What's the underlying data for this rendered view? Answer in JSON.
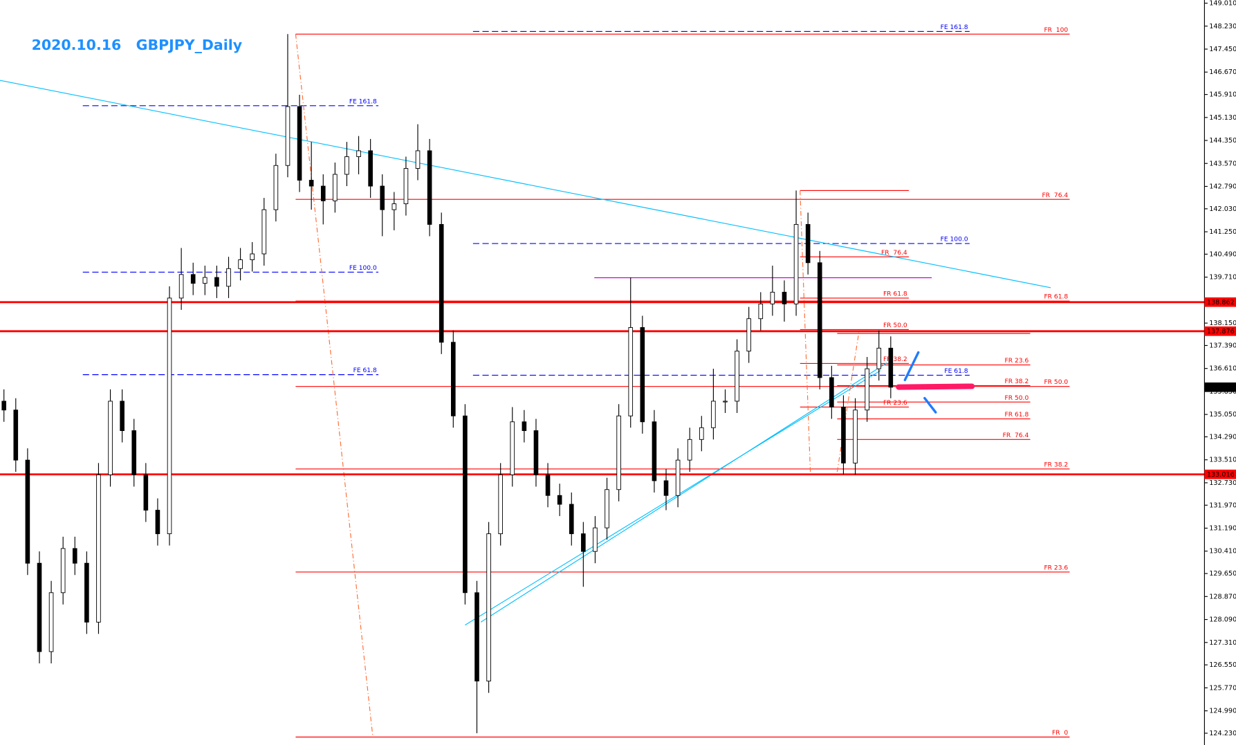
{
  "chart_data": {
    "type": "candlestick",
    "title": "2020.10.16   GBPJPY_Daily",
    "open": [
      135.5,
      135.2,
      133.5,
      130,
      127,
      129,
      130.5,
      130,
      128,
      133,
      135.5,
      134.5,
      133,
      131.8,
      131,
      139,
      139.8,
      139.5,
      139.7,
      139.4,
      140,
      140.3,
      140.5,
      142,
      143.5,
      145.5,
      143,
      142.8,
      142.3,
      143.2,
      143.8,
      144,
      142.8,
      142,
      142.2,
      143.4,
      144,
      141.5,
      137.5,
      135,
      129,
      126,
      131,
      133,
      134.8,
      134.5,
      133,
      132.3,
      132,
      131,
      130.4,
      131.2,
      132.5,
      135,
      138,
      134.8,
      132.8,
      132.3,
      133.5,
      134.2,
      134.6,
      135.5,
      135.5,
      137.2,
      138.3,
      138.8,
      139.2,
      138.8,
      141.5,
      140.2,
      136.3,
      135.3,
      133.4,
      135.2,
      136.6,
      137.3
    ],
    "high": [
      135.9,
      135.6,
      133.9,
      130.4,
      129.4,
      130.9,
      130.9,
      130.4,
      133.4,
      135.9,
      135.9,
      134.9,
      133.4,
      132.2,
      139.4,
      140.7,
      140.2,
      140.1,
      140.1,
      140.4,
      140.7,
      140.9,
      142.4,
      143.9,
      147.96,
      145.9,
      144.3,
      143.2,
      143.6,
      144.3,
      144.5,
      144.4,
      143.2,
      142.6,
      143.8,
      144.9,
      144.4,
      141.9,
      137.9,
      135.4,
      129.4,
      131.4,
      133.4,
      135.3,
      135.2,
      134.9,
      133.4,
      132.7,
      132.4,
      131.4,
      131.6,
      132.9,
      135.4,
      139.7,
      138.4,
      135.2,
      133.2,
      133.9,
      134.6,
      135,
      136.6,
      135.9,
      137.6,
      138.7,
      139.2,
      140.1,
      139.6,
      142.65,
      141.9,
      140.6,
      136.7,
      135.7,
      135.6,
      137,
      137.9,
      137.7
    ],
    "low": [
      134.8,
      133.1,
      129.6,
      126.6,
      126.6,
      128.6,
      129.6,
      127.6,
      127.6,
      132.6,
      134.1,
      132.6,
      131.4,
      130.6,
      130.6,
      138.6,
      139.1,
      139.1,
      139,
      139,
      139.6,
      139.9,
      140.1,
      141.6,
      143.1,
      142.6,
      142,
      141.5,
      141.9,
      142.8,
      143.2,
      142.4,
      141.1,
      141.3,
      141.8,
      143,
      141.1,
      137.1,
      134.6,
      128.6,
      124.23,
      125.6,
      130.6,
      132.6,
      134.1,
      132.6,
      131.9,
      131.6,
      130.6,
      129.2,
      130,
      130.8,
      132.1,
      134.6,
      134.4,
      132.4,
      131.8,
      131.9,
      133.1,
      133.8,
      134.2,
      135.1,
      135.1,
      136.8,
      137.9,
      138.4,
      138.2,
      138.4,
      139.8,
      135.9,
      134.9,
      133.016,
      133,
      134.8,
      136.2,
      135.6
    ],
    "close": [
      135.2,
      133.5,
      130,
      127,
      129,
      130.5,
      130,
      128,
      133,
      135.5,
      134.5,
      133,
      131.8,
      131,
      139,
      139.8,
      139.5,
      139.7,
      139.4,
      140,
      140.3,
      140.5,
      142,
      143.5,
      145.5,
      143,
      142.8,
      142.3,
      143.2,
      143.8,
      144,
      142.8,
      142,
      142.2,
      143.4,
      144,
      141.5,
      137.5,
      135,
      129,
      126,
      131,
      133,
      134.8,
      134.5,
      133,
      132.3,
      132,
      131,
      130.4,
      131.2,
      132.5,
      135,
      138,
      134.8,
      132.8,
      132.3,
      133.5,
      134.2,
      134.6,
      135.5,
      135.5,
      137.2,
      138.3,
      138.8,
      139.2,
      138.8,
      141.5,
      140.2,
      136.3,
      135.3,
      133.4,
      135.2,
      136.6,
      137.3,
      135.974
    ],
    "up_color": "#ffffff",
    "down_color": "#000000",
    "wick_color": "#000000",
    "ylim": [
      123.83,
      149.117
    ],
    "yticks": [
      {
        "value": 149.01,
        "label": "149.010"
      },
      {
        "value": 148.23,
        "label": "148.230"
      },
      {
        "value": 147.45,
        "label": "147.450"
      },
      {
        "value": 146.67,
        "label": "146.670"
      },
      {
        "value": 145.91,
        "label": "145.910"
      },
      {
        "value": 145.13,
        "label": "145.130"
      },
      {
        "value": 144.35,
        "label": "144.350"
      },
      {
        "value": 143.57,
        "label": "143.570"
      },
      {
        "value": 142.79,
        "label": "142.790"
      },
      {
        "value": 142.03,
        "label": "142.030"
      },
      {
        "value": 141.25,
        "label": "141.250"
      },
      {
        "value": 140.49,
        "label": "140.490"
      },
      {
        "value": 139.71,
        "label": "139.710"
      },
      {
        "value": 138.93,
        "label": "138.930"
      },
      {
        "value": 138.15,
        "label": "138.150"
      },
      {
        "value": 137.39,
        "label": "137.390"
      },
      {
        "value": 136.61,
        "label": "136.610"
      },
      {
        "value": 135.83,
        "label": "135.830"
      },
      {
        "value": 135.05,
        "label": "135.050"
      },
      {
        "value": 134.29,
        "label": "134.290"
      },
      {
        "value": 133.51,
        "label": "133.510"
      },
      {
        "value": 132.73,
        "label": "132.730"
      },
      {
        "value": 131.97,
        "label": "131.970"
      },
      {
        "value": 131.19,
        "label": "131.190"
      },
      {
        "value": 130.41,
        "label": "130.410"
      },
      {
        "value": 129.65,
        "label": "129.650"
      },
      {
        "value": 128.87,
        "label": "128.870"
      },
      {
        "value": 128.09,
        "label": "128.090"
      },
      {
        "value": 127.31,
        "label": "127.310"
      },
      {
        "value": 126.55,
        "label": "126.550"
      },
      {
        "value": 125.77,
        "label": "125.770"
      },
      {
        "value": 124.99,
        "label": "124.990"
      },
      {
        "value": 124.23,
        "label": "124.230"
      }
    ],
    "price_lines": [
      {
        "value": 138.862,
        "color": "#ff0000"
      },
      {
        "value": 137.876,
        "color": "#ff0000"
      },
      {
        "value": 133.016,
        "color": "#ff0000"
      },
      {
        "value": 135.974,
        "color": "#000000"
      }
    ],
    "levels": [
      {
        "label": "FR  100",
        "value": 147.96,
        "from": 24.67,
        "to": 90.13,
        "color": "#ff0000",
        "style": "solid"
      },
      {
        "label": "FR  76.4",
        "value": 142.35,
        "from": 24.67,
        "to": 90.13,
        "color": "#ff0000",
        "style": "solid"
      },
      {
        "label": "FR 61.8",
        "value": 138.9,
        "from": 24.67,
        "to": 90.13,
        "color": "#ff0000",
        "style": "solid"
      },
      {
        "label": "FR 50.0",
        "value": 136.0,
        "from": 24.67,
        "to": 90.13,
        "color": "#ff0000",
        "style": "solid"
      },
      {
        "label": "FR 38.2",
        "value": 133.2,
        "from": 24.67,
        "to": 90.13,
        "color": "#ff0000",
        "style": "solid"
      },
      {
        "label": "FR 23.6",
        "value": 129.7,
        "from": 24.67,
        "to": 90.13,
        "color": "#ff0000",
        "style": "solid"
      },
      {
        "label": "FR  0",
        "value": 124.1,
        "from": 24.67,
        "to": 90.13,
        "color": "#ff0000",
        "style": "solid"
      },
      {
        "value": 142.65,
        "from": 67.33,
        "to": 76.53,
        "color": "#ff0000",
        "style": "solid"
      },
      {
        "label": "FR  76.4",
        "value": 140.4,
        "from": 67.33,
        "to": 76.53,
        "color": "#ff0000",
        "style": "solid"
      },
      {
        "label": "FR 61.8",
        "value": 139.0,
        "from": 67.33,
        "to": 76.53,
        "color": "#ff0000",
        "style": "solid"
      },
      {
        "label": "FR 50.0",
        "value": 137.93,
        "from": 67.33,
        "to": 76.53,
        "color": "#ff0000",
        "style": "solid"
      },
      {
        "label": "FR 38.2",
        "value": 136.78,
        "from": 67.33,
        "to": 76.53,
        "color": "#ff0000",
        "style": "solid"
      },
      {
        "label": "FR 23.6",
        "value": 135.3,
        "from": 67.33,
        "to": 76.53,
        "color": "#ff0000",
        "style": "solid"
      },
      {
        "value": 137.8,
        "from": 70.47,
        "to": 86.8,
        "color": "#ff0000",
        "style": "solid"
      },
      {
        "label": "FR 23.6",
        "value": 136.73,
        "from": 70.47,
        "to": 86.8,
        "color": "#ff0000",
        "style": "solid"
      },
      {
        "label": "FR 38.2",
        "value": 136.03,
        "from": 70.47,
        "to": 86.8,
        "color": "#ff0000",
        "style": "solid"
      },
      {
        "label": "FR 50.0",
        "value": 135.47,
        "from": 70.47,
        "to": 86.8,
        "color": "#ff0000",
        "style": "solid"
      },
      {
        "label": "FR 61.8",
        "value": 134.9,
        "from": 70.47,
        "to": 86.8,
        "color": "#ff0000",
        "style": "solid"
      },
      {
        "label": "FR  76.4",
        "value": 134.2,
        "from": 70.47,
        "to": 86.8,
        "color": "#ff0000",
        "style": "solid"
      },
      {
        "label": "FE 161.8",
        "value": 145.53,
        "from": 6.67,
        "to": 31.67,
        "color": "#0000ff",
        "style": "dashed"
      },
      {
        "label": "FE 100.0",
        "value": 139.88,
        "from": 6.67,
        "to": 31.67,
        "color": "#0000ff",
        "style": "dashed"
      },
      {
        "label": "FE 61.8",
        "value": 136.4,
        "from": 6.67,
        "to": 31.67,
        "color": "#0000ff",
        "style": "dashed"
      },
      {
        "label": "FE 161.8",
        "value": 148.05,
        "from": 39.67,
        "to": 81.67,
        "color": "#0000ff",
        "style": "dashed"
      },
      {
        "label": "FE 100.0",
        "value": 140.85,
        "from": 39.67,
        "to": 81.67,
        "color": "#0000ff",
        "style": "dashed"
      },
      {
        "label": "FE 61.8",
        "value": 136.38,
        "from": 39.67,
        "to": 81.67,
        "color": "#0000ff",
        "style": "dashed"
      },
      {
        "value": 139.69,
        "from": 49.93,
        "to": 78.47,
        "color": "#cc00cc",
        "style": "solid"
      }
    ],
    "trendlines": [
      {
        "from": -0.33,
        "to": 88.53,
        "start": 146.39,
        "end": 139.35,
        "color": "#00bfff",
        "style": "solid"
      },
      {
        "from": 39,
        "to": 74.13,
        "start": 127.9,
        "end": 136.54,
        "color": "#00bfff",
        "style": "solid"
      },
      {
        "from": 40.33,
        "to": 74.67,
        "start": 128.0,
        "end": 136.8,
        "color": "#00bfff",
        "style": "solid"
      },
      {
        "from": 24.67,
        "to": 31.2,
        "start": 147.96,
        "end": 124.1,
        "color": "#ff6a33",
        "style": "dashdot"
      },
      {
        "from": 67.33,
        "to": 68.2,
        "start": 142.65,
        "end": 133.1,
        "color": "#ff6a33",
        "style": "dashdot"
      },
      {
        "from": 70.47,
        "to": 72.33,
        "start": 133.1,
        "end": 137.9,
        "color": "#ff6a33",
        "style": "dashdot"
      }
    ]
  }
}
